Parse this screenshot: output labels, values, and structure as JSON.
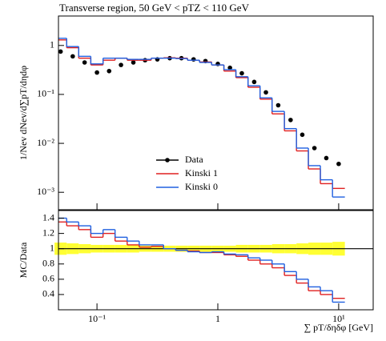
{
  "chart_data": [
    {
      "type": "step",
      "title": "Transverse region, 50 GeV < pTZ < 110 GeV",
      "ylabel": "1/Nev dNev/d∑pT/dηdφ",
      "log_y": true,
      "ylim": [
        0.00044,
        4
      ],
      "yticks": [
        {
          "value": 0.001,
          "label": "10⁻³"
        },
        {
          "value": 0.01,
          "label": "10⁻²"
        },
        {
          "value": 0.1,
          "label": "10⁻¹"
        },
        1
      ],
      "x": [
        0.05,
        0.063,
        0.079,
        0.1,
        0.126,
        0.158,
        0.2,
        0.25,
        0.316,
        0.4,
        0.5,
        0.63,
        0.79,
        1,
        1.26,
        1.58,
        2,
        2.5,
        3.16,
        4,
        5,
        6.3,
        7.9,
        10
      ],
      "legend": "lower center",
      "series": [
        {
          "name": "Data",
          "style": "points",
          "color": "#000000",
          "values": [
            0.75,
            0.6,
            0.45,
            0.28,
            0.3,
            0.4,
            0.45,
            0.5,
            0.52,
            0.55,
            0.55,
            0.52,
            0.48,
            0.42,
            0.35,
            0.27,
            0.18,
            0.11,
            0.06,
            0.03,
            0.015,
            0.008,
            0.005,
            0.0038
          ]
        },
        {
          "name": "Kinski 1",
          "style": "step",
          "color": "#e02020",
          "values": [
            1.3,
            0.9,
            0.55,
            0.4,
            0.5,
            0.55,
            0.5,
            0.5,
            0.55,
            0.56,
            0.55,
            0.5,
            0.46,
            0.4,
            0.3,
            0.22,
            0.14,
            0.08,
            0.04,
            0.018,
            0.007,
            0.003,
            0.0015,
            0.0012
          ]
        },
        {
          "name": "Kinski 0",
          "style": "step",
          "color": "#2060e0",
          "values": [
            1.4,
            0.95,
            0.6,
            0.42,
            0.55,
            0.55,
            0.52,
            0.52,
            0.55,
            0.55,
            0.54,
            0.5,
            0.45,
            0.4,
            0.32,
            0.23,
            0.15,
            0.085,
            0.045,
            0.02,
            0.008,
            0.0035,
            0.0018,
            0.0008
          ]
        }
      ]
    },
    {
      "type": "step",
      "ylabel": "MC/Data",
      "xlabel": "∑ pT/δηδφ [GeV]",
      "log_x": true,
      "xlim": [
        0.048,
        19.3
      ],
      "xticks": [
        {
          "value": 0.1,
          "label": "10⁻¹"
        },
        1,
        {
          "value": 10,
          "label": "10¹"
        }
      ],
      "ylim": [
        0.2,
        1.5
      ],
      "yticks": [
        0.4,
        0.6,
        0.8,
        1,
        1.2,
        1.4
      ],
      "reference": 1,
      "band_color": "#ffff33",
      "band_errors": [
        0.08,
        0.07,
        0.06,
        0.05,
        0.05,
        0.05,
        0.05,
        0.04,
        0.04,
        0.04,
        0.04,
        0.04,
        0.04,
        0.04,
        0.04,
        0.05,
        0.05,
        0.05,
        0.06,
        0.06,
        0.07,
        0.08,
        0.08,
        0.09
      ],
      "series": [
        {
          "style": "step",
          "color": "#e02020",
          "values": [
            1.35,
            1.3,
            1.25,
            1.15,
            1.2,
            1.1,
            1.05,
            1.02,
            1.03,
            1.0,
            0.98,
            0.97,
            0.95,
            0.95,
            0.92,
            0.9,
            0.85,
            0.8,
            0.75,
            0.65,
            0.55,
            0.45,
            0.4,
            0.35
          ]
        },
        {
          "style": "step",
          "color": "#2060e0",
          "values": [
            1.4,
            1.35,
            1.3,
            1.2,
            1.25,
            1.15,
            1.1,
            1.05,
            1.05,
            1.0,
            0.98,
            0.96,
            0.95,
            0.96,
            0.93,
            0.92,
            0.88,
            0.85,
            0.8,
            0.7,
            0.6,
            0.5,
            0.45,
            0.3
          ]
        }
      ]
    }
  ]
}
